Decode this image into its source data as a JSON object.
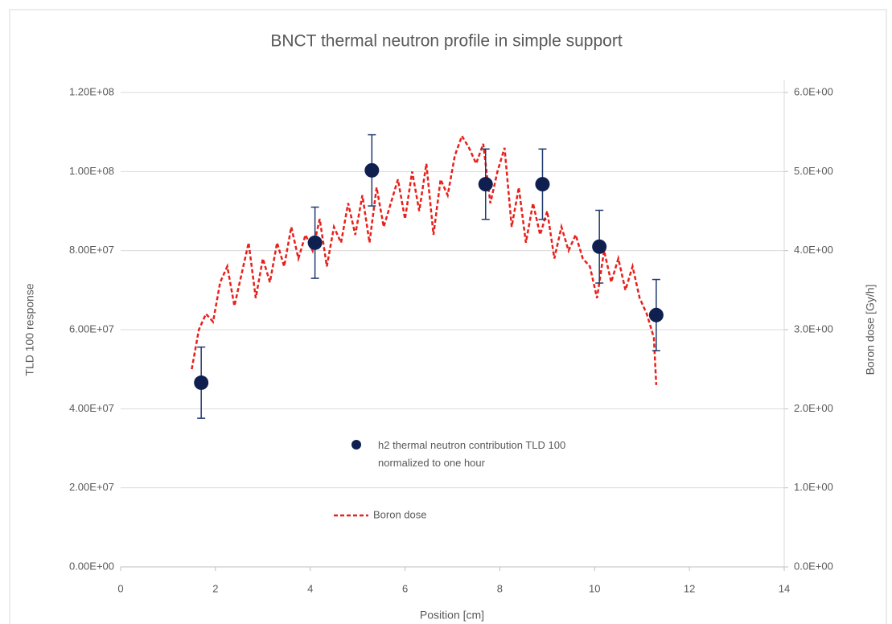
{
  "chart_data": {
    "type": "scatter",
    "title": "BNCT thermal neutron profile in simple support",
    "x_label": "Position [cm]",
    "y_label": "TLD 100 response",
    "y2_label": "Boron dose [Gy/h]",
    "xlim": [
      0,
      14
    ],
    "xticks": [
      0,
      2,
      4,
      6,
      8,
      10,
      12,
      14
    ],
    "ylim": [
      0,
      120000000
    ],
    "yticks": [
      {
        "value": 0,
        "label": "0.00E+00"
      },
      {
        "value": 20000000,
        "label": "2.00E+07"
      },
      {
        "value": 40000000,
        "label": "4.00E+07"
      },
      {
        "value": 60000000,
        "label": "6.00E+07"
      },
      {
        "value": 80000000,
        "label": "8.00E+07"
      },
      {
        "value": 100000000,
        "label": "1.00E+08"
      },
      {
        "value": 120000000,
        "label": "1.20E+08"
      }
    ],
    "y2lim": [
      0,
      6
    ],
    "y2ticks": [
      {
        "value": 0,
        "label": "0.0E+00"
      },
      {
        "value": 1,
        "label": "1.0E+00"
      },
      {
        "value": 2,
        "label": "2.0E+00"
      },
      {
        "value": 3,
        "label": "3.0E+00"
      },
      {
        "value": 4,
        "label": "4.0E+00"
      },
      {
        "value": 5,
        "label": "5.0E+00"
      },
      {
        "value": 6,
        "label": "6.0E+00"
      }
    ],
    "grid": true,
    "series": [
      {
        "name": "h2 thermal neutron contribution TLD 100 normalized to one hour",
        "type": "scatter",
        "color": "#0f1f50",
        "x": [
          1.7,
          4.1,
          5.3,
          7.7,
          8.9,
          10.1,
          11.3
        ],
        "values": [
          46600000,
          82000000,
          100300000,
          96800000,
          96800000,
          81000000,
          63700000
        ],
        "errors": [
          9000000,
          9000000,
          9000000,
          8900000,
          8900000,
          9200000,
          9000000
        ]
      },
      {
        "name": "Boron dose",
        "type": "line",
        "color": "#e8201b",
        "dashed": true,
        "axis": "y2",
        "x": [
          1.5,
          1.65,
          1.8,
          1.95,
          2.1,
          2.25,
          2.4,
          2.55,
          2.7,
          2.85,
          3.0,
          3.15,
          3.3,
          3.45,
          3.6,
          3.75,
          3.9,
          4.05,
          4.2,
          4.35,
          4.5,
          4.65,
          4.8,
          4.95,
          5.1,
          5.25,
          5.4,
          5.55,
          5.7,
          5.85,
          6.0,
          6.15,
          6.3,
          6.45,
          6.6,
          6.75,
          6.9,
          7.05,
          7.2,
          7.35,
          7.5,
          7.65,
          7.8,
          7.95,
          8.1,
          8.25,
          8.4,
          8.55,
          8.7,
          8.85,
          9.0,
          9.15,
          9.3,
          9.45,
          9.6,
          9.75,
          9.9,
          10.05,
          10.2,
          10.35,
          10.5,
          10.65,
          10.8,
          10.95,
          11.1,
          11.25,
          11.3
        ],
        "values": [
          2.5,
          3.0,
          3.2,
          3.1,
          3.6,
          3.8,
          3.3,
          3.7,
          4.1,
          3.4,
          3.9,
          3.6,
          4.1,
          3.8,
          4.3,
          3.9,
          4.2,
          4.0,
          4.4,
          3.8,
          4.3,
          4.1,
          4.6,
          4.2,
          4.7,
          4.1,
          4.8,
          4.3,
          4.6,
          4.9,
          4.4,
          5.0,
          4.5,
          5.1,
          4.2,
          4.9,
          4.7,
          5.2,
          5.45,
          5.3,
          5.1,
          5.35,
          4.6,
          5.0,
          5.3,
          4.3,
          4.8,
          4.1,
          4.6,
          4.2,
          4.5,
          3.9,
          4.3,
          4.0,
          4.2,
          3.9,
          3.8,
          3.4,
          4.0,
          3.6,
          3.9,
          3.5,
          3.8,
          3.4,
          3.2,
          2.9,
          2.3
        ]
      }
    ]
  }
}
